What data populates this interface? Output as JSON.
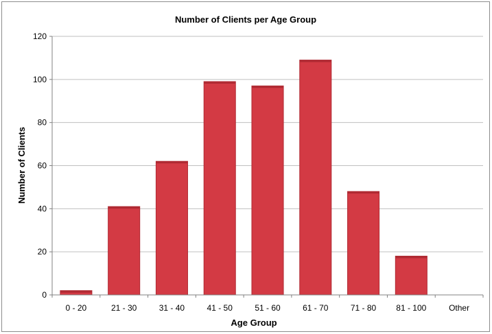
{
  "chart_data": {
    "type": "bar",
    "title": "Number of Clients per Age Group",
    "xlabel": "Age Group",
    "ylabel": "Number of Clients",
    "categories": [
      "0 - 20",
      "21 - 30",
      "31 - 40",
      "41 - 50",
      "51 - 60",
      "61 - 70",
      "71 - 80",
      "81 - 100",
      "Other"
    ],
    "values": [
      2,
      41,
      62,
      99,
      97,
      109,
      48,
      18,
      0
    ],
    "ylim": [
      0,
      120
    ],
    "yticks": [
      0,
      20,
      40,
      60,
      80,
      100,
      120
    ],
    "grid": true,
    "legend": "none",
    "colors": {
      "bar": "#d33a44",
      "bar_top": "#b02a33"
    }
  }
}
